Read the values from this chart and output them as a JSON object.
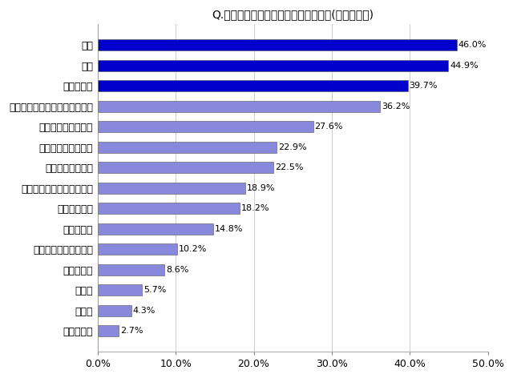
{
  "title": "Q.あなたの疲労解消法はなんですか？(複数回答可)",
  "categories": [
    "睡眠",
    "入浴",
    "お酒を飲む",
    "運動ストレッチなど体を動かす",
    "趣味の時間をすごす",
    "好きなものを食べる",
    "マッサージに行く",
    "旅行やレジャーに出かける",
    "ぼーっとする",
    "音楽を聴く",
    "疲労解消グッズを使う",
    "何もしない",
    "買い物",
    "その他",
    "友人と会う"
  ],
  "values": [
    46.0,
    44.9,
    39.7,
    36.2,
    27.6,
    22.9,
    22.5,
    18.9,
    18.2,
    14.8,
    10.2,
    8.6,
    5.7,
    4.3,
    2.7
  ],
  "bar_colors": [
    "#0000cc",
    "#0000cc",
    "#0000cc",
    "#8888dd",
    "#8888dd",
    "#8888dd",
    "#8888dd",
    "#8888dd",
    "#8888dd",
    "#8888dd",
    "#8888dd",
    "#8888dd",
    "#8888dd",
    "#8888dd",
    "#8888dd"
  ],
  "xlim": [
    0,
    50
  ],
  "xtick_labels": [
    "0.0%",
    "10.0%",
    "20.0%",
    "30.0%",
    "40.0%",
    "50.0%"
  ],
  "xtick_values": [
    0,
    10,
    20,
    30,
    40,
    50
  ],
  "title_fontsize": 10,
  "label_fontsize": 9,
  "value_fontsize": 8,
  "background_color": "#ffffff",
  "plot_bg_color": "#ffffff"
}
